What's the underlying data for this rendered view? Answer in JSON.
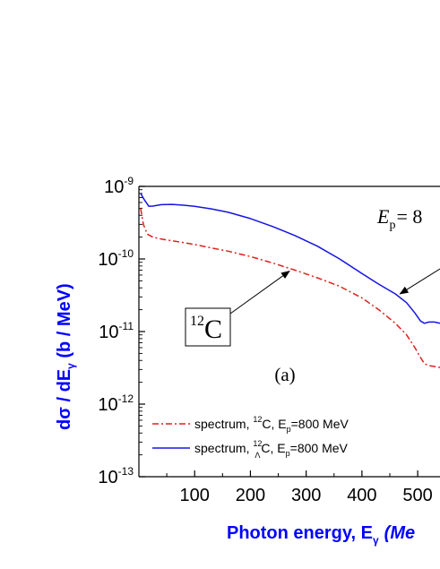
{
  "chart_data": {
    "type": "line",
    "title": "",
    "xlabel": {
      "main": "Photon energy, E",
      "sub": "γ",
      "tail": "(Me"
    },
    "ylabel": {
      "prefix": "dσ / dE",
      "sub": "γ",
      "suffix": " (b / MeV)"
    },
    "x_scale": "linear",
    "y_scale": "log",
    "xlim": [
      0,
      540
    ],
    "ylim": [
      1e-13,
      1e-09
    ],
    "x_ticks": [
      100,
      200,
      300,
      400,
      500
    ],
    "x_tick_labels": [
      "100",
      "200",
      "300",
      "400",
      "500"
    ],
    "y_ticks": [
      {
        "value": 1e-09,
        "base": "10",
        "exp": "-9"
      },
      {
        "value": 1e-10,
        "base": "10",
        "exp": "-10"
      },
      {
        "value": 1e-11,
        "base": "10",
        "exp": "-11"
      },
      {
        "value": 1e-12,
        "base": "10",
        "exp": "-12"
      },
      {
        "value": 1e-13,
        "base": "10",
        "exp": "-13"
      }
    ],
    "grid": false,
    "legend_position": "bottom-left",
    "series": [
      {
        "name": "spectrum, 12C, Ep=800 MeV",
        "legend": {
          "pre": "spectrum, ",
          "sup": "12",
          "mid": "C, E",
          "sub": "p",
          "post": "=800 MeV"
        },
        "color": "#e0201b",
        "style": "dash-dot",
        "x": [
          3,
          8,
          15,
          25,
          40,
          60,
          80,
          100,
          130,
          160,
          200,
          240,
          280,
          320,
          360,
          400,
          430,
          460,
          480,
          495,
          505,
          512,
          520,
          530,
          540
        ],
        "y": [
          5e-10,
          3e-10,
          2.2e-10,
          2e-10,
          1.88e-10,
          1.78e-10,
          1.68e-10,
          1.58e-10,
          1.42e-10,
          1.28e-10,
          1.08e-10,
          8.8e-11,
          7e-11,
          5.5e-11,
          4.2e-11,
          2.9e-11,
          2e-11,
          1.3e-11,
          9e-12,
          6e-12,
          4.4e-12,
          3.6e-12,
          3.4e-12,
          3.3e-12,
          3.2e-12
        ]
      },
      {
        "name": "spectrum, 12ΛC, Ep=800 MeV",
        "legend": {
          "pre": "spectrum, ",
          "sup": "12",
          "subsub": "Λ",
          "mid": "C, E",
          "sub": "p",
          "post": "=800 MeV"
        },
        "color": "#1515e0",
        "style": "solid",
        "x": [
          3,
          10,
          18,
          25,
          40,
          60,
          80,
          100,
          130,
          160,
          200,
          240,
          280,
          320,
          360,
          400,
          430,
          460,
          480,
          495,
          505,
          512,
          520,
          530,
          540
        ],
        "y": [
          8e-10,
          6.5e-10,
          5.3e-10,
          5.35e-10,
          5.6e-10,
          5.65e-10,
          5.5e-10,
          5.3e-10,
          4.9e-10,
          4.4e-10,
          3.6e-10,
          2.8e-10,
          2.1e-10,
          1.5e-10,
          1e-10,
          6.3e-11,
          4.5e-11,
          3.3e-11,
          2.5e-11,
          1.8e-11,
          1.4e-11,
          1.3e-11,
          1.35e-11,
          1.35e-11,
          1.3e-11
        ]
      }
    ],
    "annotations": {
      "boxed_label": {
        "sup": "12",
        "text": "C",
        "points_to": {
          "x": 270,
          "y": 7e-11
        }
      },
      "energy_label": {
        "italic": "E",
        "sub": "p",
        "text": "= 8"
      },
      "energy_arrow_target": {
        "x": 465,
        "y": 3.5e-11
      },
      "panel_label": "(a)"
    }
  }
}
